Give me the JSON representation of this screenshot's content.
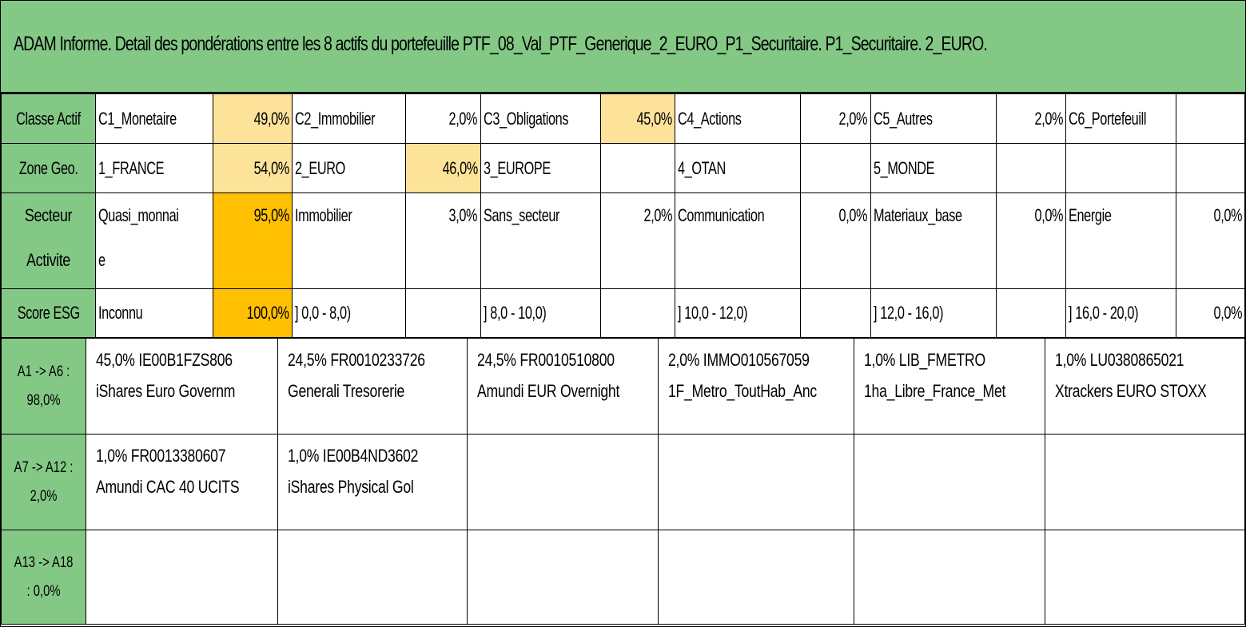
{
  "title": "ADAM Informe. Detail des pondérations entre les 8 actifs du portefeuille PTF_08_Val_PTF_Generique_2_EURO_P1_Securitaire. P1_Securitaire. 2_EURO.",
  "rows": {
    "classe": {
      "label": "Classe Actif",
      "cells": [
        {
          "name": "C1_Monetaire",
          "value": "49,0%"
        },
        {
          "name": "C2_Immobilier",
          "value": "2,0%"
        },
        {
          "name": "C3_Obligations",
          "value": "45,0%"
        },
        {
          "name": "C4_Actions",
          "value": "2,0%"
        },
        {
          "name": "C5_Autres",
          "value": "2,0%"
        },
        {
          "name": "C6_Portefeuill",
          "value": ""
        }
      ]
    },
    "zone": {
      "label": "Zone Geo.",
      "cells": [
        {
          "name": "1_FRANCE",
          "value": "54,0%"
        },
        {
          "name": "2_EURO",
          "value": "46,0%"
        },
        {
          "name": "3_EUROPE",
          "value": ""
        },
        {
          "name": "4_OTAN",
          "value": ""
        },
        {
          "name": "5_MONDE",
          "value": ""
        },
        {
          "name": "",
          "value": ""
        }
      ]
    },
    "secteur": {
      "label": "Secteur Activite",
      "cells": [
        {
          "name": "Quasi_monnaie",
          "value": "95,0%"
        },
        {
          "name": "Immobilier",
          "value": "3,0%"
        },
        {
          "name": "Sans_secteur",
          "value": "2,0%"
        },
        {
          "name": "Communication",
          "value": "0,0%"
        },
        {
          "name": "Materiaux_base",
          "value": "0,0%"
        },
        {
          "name": "Energie",
          "value": "0,0%"
        }
      ]
    },
    "esg": {
      "label": "Score ESG",
      "cells": [
        {
          "name": "Inconnu",
          "value": "100,0%"
        },
        {
          "name": "] 0,0 - 8,0)",
          "value": ""
        },
        {
          "name": "] 8,0 - 10,0)",
          "value": ""
        },
        {
          "name": "] 10,0 - 12,0)",
          "value": ""
        },
        {
          "name": "] 12,0 - 16,0)",
          "value": ""
        },
        {
          "name": "] 16,0 - 20,0)",
          "value": "0,0%"
        }
      ]
    }
  },
  "assets": [
    {
      "label": "A1 -> A6 : 98,0%",
      "items": [
        {
          "line1": "45,0% IE00B1FZS806",
          "line2": "iShares Euro Governm"
        },
        {
          "line1": "24,5% FR0010233726",
          "line2": "Generali Tresorerie"
        },
        {
          "line1": "24,5% FR0010510800",
          "line2": "Amundi EUR Overnight"
        },
        {
          "line1": "2,0% IMMO010567059",
          "line2": "1F_Metro_ToutHab_Anc"
        },
        {
          "line1": "1,0% LIB_FMETRO",
          "line2": "1ha_Libre_France_Met"
        },
        {
          "line1": "1,0% LU0380865021",
          "line2": "Xtrackers EURO STOXX"
        }
      ]
    },
    {
      "label": "A7 -> A12 : 2,0%",
      "items": [
        {
          "line1": "1,0% FR0013380607",
          "line2": "Amundi CAC 40 UCITS"
        },
        {
          "line1": "1,0% IE00B4ND3602",
          "line2": "iShares Physical Gol"
        },
        {
          "line1": "",
          "line2": ""
        },
        {
          "line1": "",
          "line2": ""
        },
        {
          "line1": "",
          "line2": ""
        },
        {
          "line1": "",
          "line2": ""
        }
      ]
    },
    {
      "label": "A13 -> A18 : 0,0%",
      "items": [
        {
          "line1": "",
          "line2": ""
        },
        {
          "line1": "",
          "line2": ""
        },
        {
          "line1": "",
          "line2": ""
        },
        {
          "line1": "",
          "line2": ""
        },
        {
          "line1": "",
          "line2": ""
        },
        {
          "line1": "",
          "line2": ""
        }
      ]
    }
  ],
  "colors": {
    "header_green": "#83c985",
    "yellow_light": "#fde29a",
    "yellow_pale": "#fbeed3",
    "yellow_strong": "#fec000"
  }
}
